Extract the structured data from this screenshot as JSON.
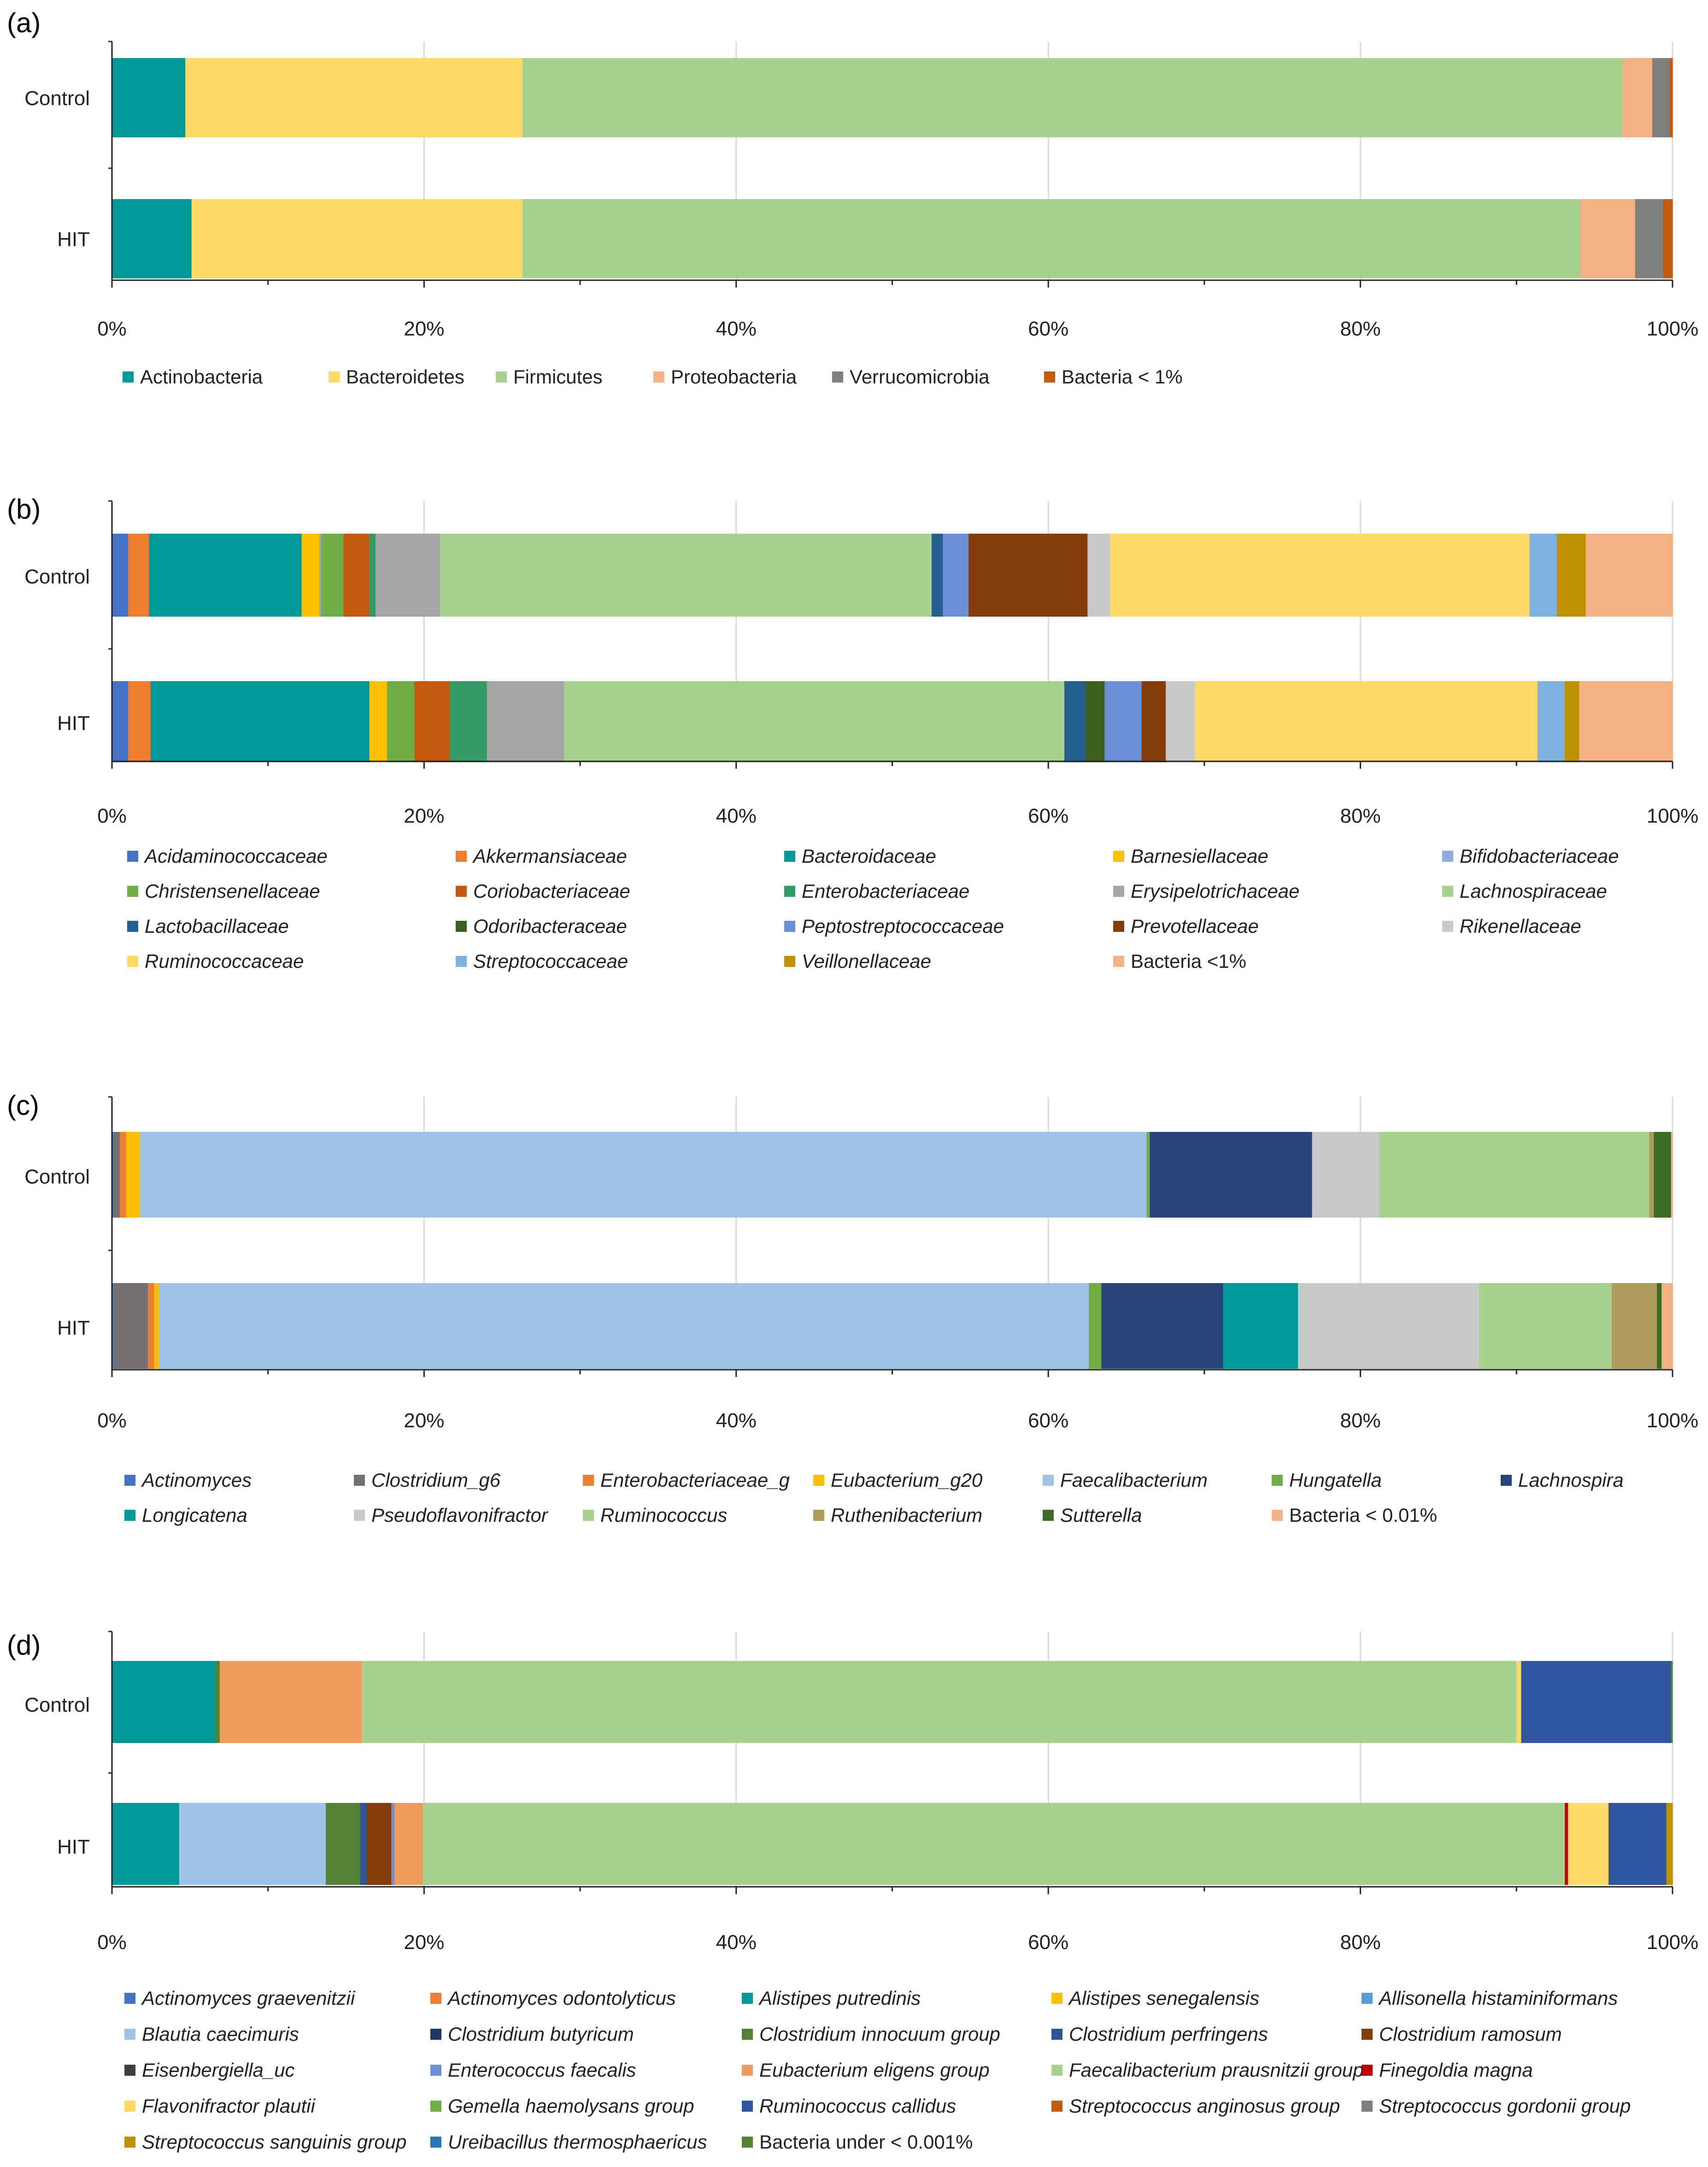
{
  "figure": {
    "axis_ticks": [
      "0%",
      "20%",
      "40%",
      "60%",
      "80%",
      "100%"
    ]
  },
  "chart_data": [
    {
      "panel": "(a)",
      "type": "bar",
      "orientation": "horizontal-stacked-100",
      "xlim": [
        0,
        100
      ],
      "categories": [
        "Control",
        "HIT"
      ],
      "series": [
        {
          "name": "Actinobacteria",
          "color": "#009999",
          "italic": false,
          "values": [
            4.7,
            5.1
          ]
        },
        {
          "name": "Bacteroidetes",
          "color": "#FFD966",
          "italic": false,
          "values": [
            21.6,
            21.2
          ]
        },
        {
          "name": "Firmicutes",
          "color": "#A9D18E",
          "italic": false,
          "values": [
            70.5,
            67.8
          ]
        },
        {
          "name": "Proteobacteria",
          "color": "#F4B183",
          "italic": false,
          "values": [
            1.9,
            3.5
          ]
        },
        {
          "name": "Verrucomicrobia",
          "color": "#7F7F7F",
          "italic": false,
          "values": [
            1.1,
            1.8
          ]
        },
        {
          "name": "Bacteria < 1%",
          "color": "#C55A11",
          "italic": false,
          "values": [
            0.2,
            0.6
          ]
        }
      ]
    },
    {
      "panel": "(b)",
      "type": "bar",
      "orientation": "horizontal-stacked-100",
      "xlim": [
        0,
        100
      ],
      "categories": [
        "Control",
        "HIT"
      ],
      "series": [
        {
          "name": "Acidaminococcaceae",
          "color": "#4472C4",
          "italic": true,
          "values": [
            1.0,
            1.0
          ]
        },
        {
          "name": "Akkermansiaceae",
          "color": "#ED7D31",
          "italic": true,
          "values": [
            1.3,
            1.4
          ]
        },
        {
          "name": "Bacteroidaceae",
          "color": "#009999",
          "italic": true,
          "values": [
            9.5,
            13.6
          ]
        },
        {
          "name": "Barnesiellaceae",
          "color": "#FFC000",
          "italic": true,
          "values": [
            1.1,
            1.1
          ]
        },
        {
          "name": "Bifidobacteriaceae",
          "color": "#8FAADC",
          "italic": true,
          "values": [
            0.1,
            0.0
          ]
        },
        {
          "name": "Christensenellaceae",
          "color": "#70AD47",
          "italic": true,
          "values": [
            1.4,
            1.7
          ]
        },
        {
          "name": "Coriobacteriaceae",
          "color": "#C55A11",
          "italic": true,
          "values": [
            1.6,
            2.2
          ]
        },
        {
          "name": "Enterobacteriaceae",
          "color": "#339966",
          "italic": true,
          "values": [
            0.4,
            2.3
          ]
        },
        {
          "name": "Erysipelotrichaceae",
          "color": "#A5A5A5",
          "italic": true,
          "values": [
            4.0,
            4.8
          ]
        },
        {
          "name": "Lachnospiraceae",
          "color": "#A9D18E",
          "italic": true,
          "values": [
            30.6,
            31.1
          ]
        },
        {
          "name": "Lactobacillaceae",
          "color": "#255E91",
          "italic": true,
          "values": [
            0.7,
            1.3
          ]
        },
        {
          "name": "Odoribacteraceae",
          "color": "#3A5F1F",
          "italic": true,
          "values": [
            0.0,
            1.2
          ]
        },
        {
          "name": "Peptostreptococcaceae",
          "color": "#6A8FD6",
          "italic": true,
          "values": [
            1.6,
            2.3
          ]
        },
        {
          "name": "Prevotellaceae",
          "color": "#843C0C",
          "italic": true,
          "values": [
            7.4,
            1.5
          ]
        },
        {
          "name": "Rikenellaceae",
          "color": "#C9C9C9",
          "italic": true,
          "values": [
            1.4,
            1.8
          ]
        },
        {
          "name": "Ruminococcaceae",
          "color": "#FFD966",
          "italic": true,
          "values": [
            26.1,
            21.3
          ]
        },
        {
          "name": "Streptococcaceae",
          "color": "#7FB2E0",
          "italic": true,
          "values": [
            1.7,
            1.7
          ]
        },
        {
          "name": "Veillonellaceae",
          "color": "#BF9000",
          "italic": true,
          "values": [
            1.8,
            0.9
          ]
        },
        {
          "name": "Bacteria <1%",
          "color": "#F4B183",
          "italic": false,
          "values": [
            5.4,
            5.8
          ]
        }
      ]
    },
    {
      "panel": "(c)",
      "type": "bar",
      "orientation": "horizontal-stacked-100",
      "xlim": [
        0,
        100
      ],
      "categories": [
        "Control",
        "HIT"
      ],
      "series": [
        {
          "name": "Actinomyces",
          "color": "#4472C4",
          "italic": true,
          "values": [
            0.1,
            0.1
          ]
        },
        {
          "name": "Clostridium_g6",
          "color": "#767171",
          "italic": true,
          "values": [
            0.4,
            2.2
          ]
        },
        {
          "name": "Enterobacteriaceae_g",
          "color": "#ED7D31",
          "italic": true,
          "values": [
            0.4,
            0.4
          ]
        },
        {
          "name": "Eubacterium_g20",
          "color": "#FFC000",
          "italic": true,
          "values": [
            0.9,
            0.3
          ]
        },
        {
          "name": "Faecalibacterium",
          "color": "#9DC3E6",
          "italic": true,
          "values": [
            64.5,
            59.6
          ]
        },
        {
          "name": "Hungatella",
          "color": "#70AD47",
          "italic": true,
          "values": [
            0.2,
            0.8
          ]
        },
        {
          "name": "Lachnospira",
          "color": "#264478",
          "italic": true,
          "values": [
            10.4,
            7.8
          ]
        },
        {
          "name": "Longicatena",
          "color": "#009999",
          "italic": true,
          "values": [
            0.0,
            4.8
          ]
        },
        {
          "name": "Pseudoflavonifractor",
          "color": "#C9C9C9",
          "italic": true,
          "values": [
            4.3,
            11.6
          ]
        },
        {
          "name": "Ruminococcus",
          "color": "#A9D18E",
          "italic": true,
          "values": [
            17.3,
            8.5
          ]
        },
        {
          "name": "Ruthenibacterium",
          "color": "#B09B5C",
          "italic": true,
          "values": [
            0.3,
            2.9
          ]
        },
        {
          "name": "Sutterella",
          "color": "#3A6B27",
          "italic": true,
          "values": [
            1.1,
            0.3
          ]
        },
        {
          "name": "Bacteria < 0.01%",
          "color": "#F4B183",
          "italic": false,
          "values": [
            0.1,
            0.7
          ]
        }
      ]
    },
    {
      "panel": "(d)",
      "type": "bar",
      "orientation": "horizontal-stacked-100",
      "xlim": [
        0,
        100
      ],
      "categories": [
        "Control",
        "HIT"
      ],
      "series": [
        {
          "name": "Actinomyces graevenitzii",
          "color": "#4472C4",
          "italic": true,
          "values": [
            0.0,
            0.0
          ]
        },
        {
          "name": "Actinomyces odontolyticus",
          "color": "#ED7D31",
          "italic": true,
          "values": [
            0.0,
            0.0
          ]
        },
        {
          "name": "Alistipes putredinis",
          "color": "#009999",
          "italic": true,
          "values": [
            6.6,
            4.3
          ]
        },
        {
          "name": "Alistipes senegalensis",
          "color": "#FFC000",
          "italic": true,
          "values": [
            0.0,
            0.0
          ]
        },
        {
          "name": "Allisonella histaminiformans",
          "color": "#5B9BD5",
          "italic": true,
          "values": [
            0.0,
            0.0
          ]
        },
        {
          "name": "Blautia caecimuris",
          "color": "#9DC3E6",
          "italic": true,
          "values": [
            0.0,
            9.4
          ]
        },
        {
          "name": "Clostridium butyricum",
          "color": "#1F3864",
          "italic": true,
          "values": [
            0.0,
            0.0
          ]
        },
        {
          "name": "Clostridium innocuum group",
          "color": "#548235",
          "italic": true,
          "values": [
            0.3,
            2.2
          ]
        },
        {
          "name": "Clostridium perfringens",
          "color": "#2F5597",
          "italic": true,
          "values": [
            0.0,
            0.4
          ]
        },
        {
          "name": "Clostridium ramosum",
          "color": "#843C0C",
          "italic": true,
          "values": [
            0.0,
            1.6
          ]
        },
        {
          "name": "Eisenbergiella_uc",
          "color": "#404040",
          "italic": true,
          "values": [
            0.0,
            0.0
          ]
        },
        {
          "name": "Enterococcus faecalis",
          "color": "#6A8FD6",
          "italic": true,
          "values": [
            0.0,
            0.2
          ]
        },
        {
          "name": "Eubacterium eligens group",
          "color": "#F09B5B",
          "italic": true,
          "values": [
            9.1,
            1.8
          ]
        },
        {
          "name": "Faecalibacterium prausnitzii group",
          "color": "#A9D18E",
          "italic": true,
          "values": [
            74.0,
            73.2
          ]
        },
        {
          "name": "Finegoldia magna",
          "color": "#C00000",
          "italic": true,
          "values": [
            0.0,
            0.2
          ]
        },
        {
          "name": "Flavonifractor plautii",
          "color": "#FFD966",
          "italic": true,
          "values": [
            0.3,
            2.6
          ]
        },
        {
          "name": "Gemella haemolysans group",
          "color": "#70AD47",
          "italic": true,
          "values": [
            0.0,
            0.0
          ]
        },
        {
          "name": "Ruminococcus callidus",
          "color": "#2F54A0",
          "italic": true,
          "values": [
            9.6,
            3.7
          ]
        },
        {
          "name": "Streptococcus anginosus group",
          "color": "#C55A11",
          "italic": true,
          "values": [
            0.0,
            0.0
          ]
        },
        {
          "name": "Streptococcus gordonii group",
          "color": "#7F7F7F",
          "italic": true,
          "values": [
            0.0,
            0.0
          ]
        },
        {
          "name": "Streptococcus sanguinis group",
          "color": "#BF9000",
          "italic": true,
          "values": [
            0.0,
            0.4
          ]
        },
        {
          "name": "Ureibacillus thermosphaericus",
          "color": "#2E75B6",
          "italic": true,
          "values": [
            0.0,
            0.0
          ]
        },
        {
          "name": "Bacteria under < 0.001%",
          "color": "#548235",
          "italic": false,
          "values": [
            0.1,
            0.0
          ]
        }
      ]
    }
  ]
}
